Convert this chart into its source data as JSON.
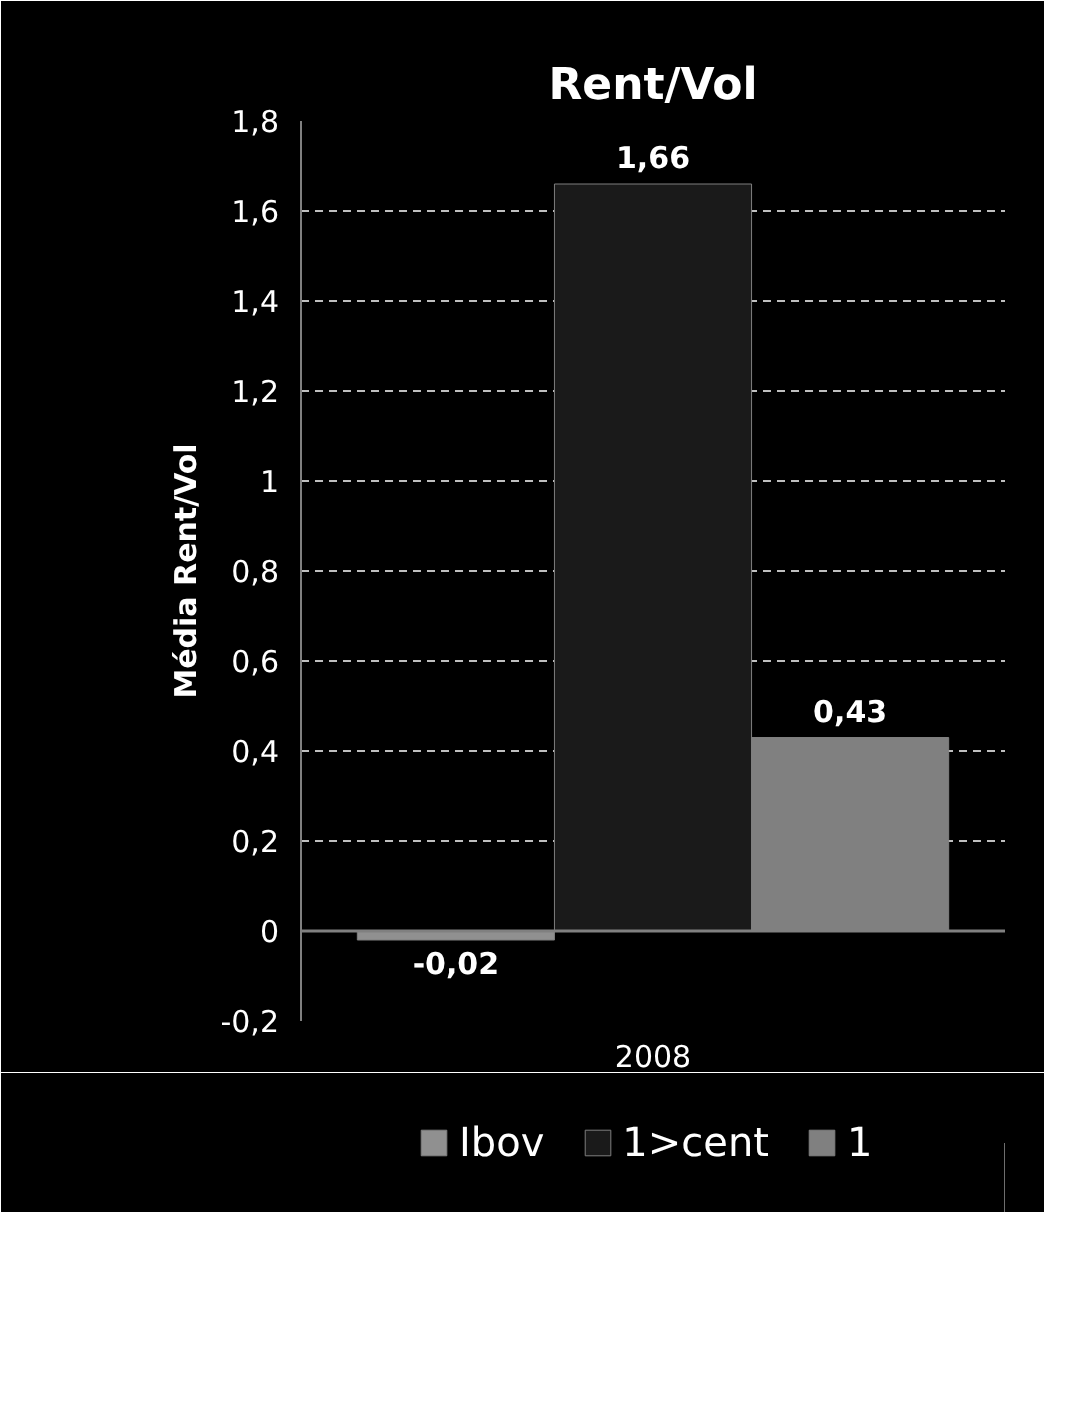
{
  "chart_data": {
    "type": "bar",
    "title": "Rent/Vol",
    "ylabel": "Média Rent/Vol",
    "categories": [
      "2008"
    ],
    "series": [
      {
        "name": "Ibov",
        "color": "#909090",
        "values": [
          -0.02
        ],
        "value_labels": [
          "-0,02"
        ]
      },
      {
        "name": "1>cent",
        "color": "#1a1a1a",
        "values": [
          1.66
        ],
        "value_labels": [
          "1,66"
        ]
      },
      {
        "name": "1",
        "color": "#808080",
        "values": [
          0.43
        ],
        "value_labels": [
          "0,43"
        ]
      }
    ],
    "ylim": [
      -0.2,
      1.8
    ],
    "yticks": [
      {
        "value": -0.2,
        "label": "-0,2"
      },
      0,
      {
        "value": 0.2,
        "label": "0,2"
      },
      {
        "value": 0.4,
        "label": "0,4"
      },
      {
        "value": 0.6,
        "label": "0,6"
      },
      {
        "value": 0.8,
        "label": "0,8"
      },
      1,
      {
        "value": 1.2,
        "label": "1,2"
      },
      {
        "value": 1.4,
        "label": "1,4"
      },
      {
        "value": 1.6,
        "label": "1,6"
      },
      {
        "value": 1.8,
        "label": "1,8"
      }
    ],
    "grid": "y",
    "legend": "bottom"
  }
}
